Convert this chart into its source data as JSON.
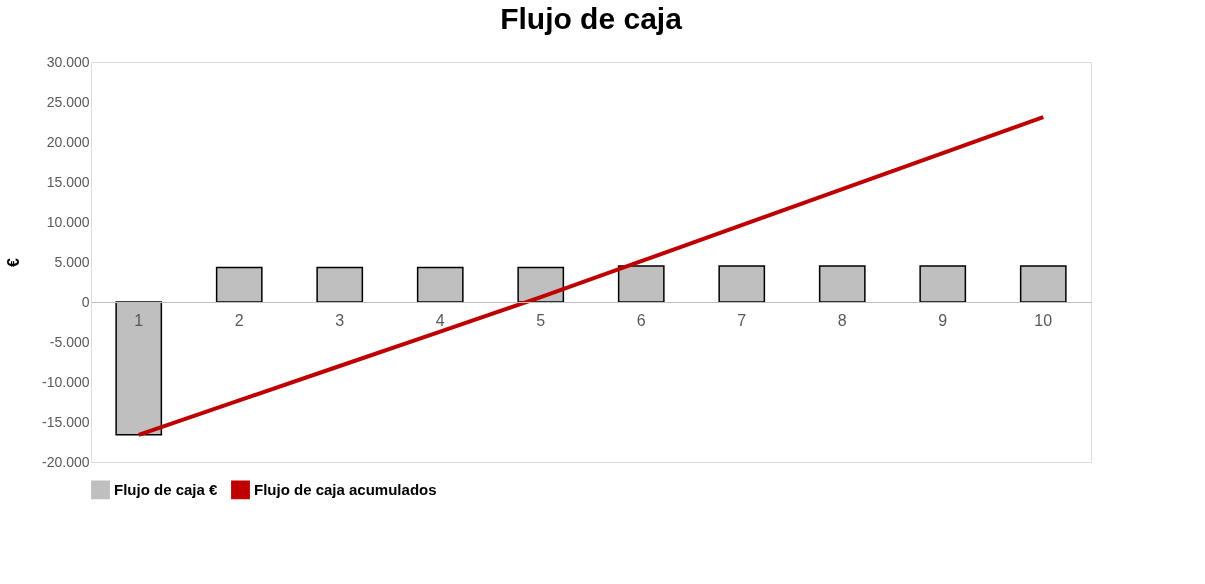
{
  "chart_data": {
    "type": "bar",
    "title": "Flujo de caja",
    "ylabel": "€",
    "categories": [
      "1",
      "2",
      "3",
      "4",
      "5",
      "6",
      "7",
      "8",
      "9",
      "10"
    ],
    "series": [
      {
        "name": "Flujo de caja €",
        "color": "#bfbfbf",
        "values": [
          -16600,
          4300,
          4300,
          4300,
          4300,
          4500,
          4500,
          4500,
          4500,
          4500
        ]
      },
      {
        "name": "Flujo de caja acumulados",
        "type": "line",
        "color": "#c00000",
        "values": [
          -16600,
          -12300,
          -8000,
          -3700,
          600,
          5100,
          9600,
          14100,
          18600,
          23100
        ]
      }
    ],
    "ylim": [
      -20000,
      30000
    ],
    "yticks": [
      {
        "value": -20000,
        "label": "-20.000"
      },
      {
        "value": -15000,
        "label": "-15.000"
      },
      {
        "value": -10000,
        "label": "-10.000"
      },
      {
        "value": -5000,
        "label": "-5.000"
      },
      {
        "value": 0,
        "label": "0"
      },
      {
        "value": 5000,
        "label": "5.000"
      },
      {
        "value": 10000,
        "label": "10.000"
      },
      {
        "value": 15000,
        "label": "15.000"
      },
      {
        "value": 20000,
        "label": "20.000"
      },
      {
        "value": 25000,
        "label": "25.000"
      },
      {
        "value": 30000,
        "label": "30.000"
      }
    ],
    "grid": false,
    "legend": "bottom",
    "marker": "none",
    "line_style": "solid"
  }
}
